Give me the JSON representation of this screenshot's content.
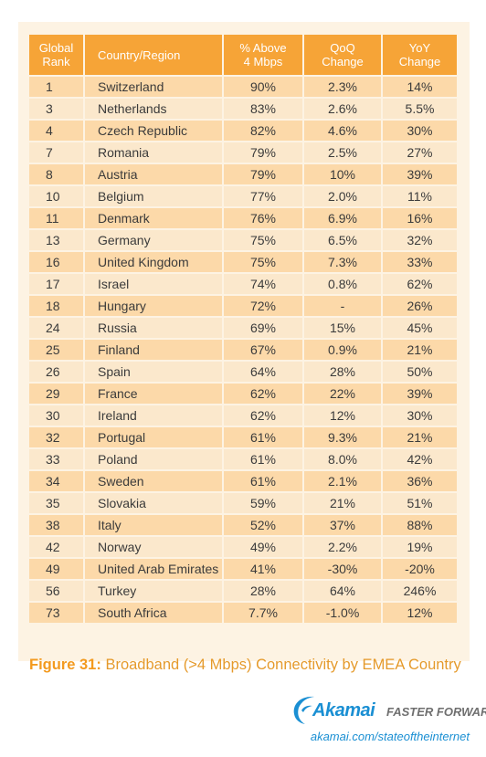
{
  "table": {
    "headers": [
      [
        "Global",
        "Rank"
      ],
      [
        "Country/Region"
      ],
      [
        "% Above",
        "4 Mbps"
      ],
      [
        "QoQ",
        "Change"
      ],
      [
        "YoY",
        "Change"
      ]
    ],
    "rows": [
      [
        "1",
        "Switzerland",
        "90%",
        "2.3%",
        "14%"
      ],
      [
        "3",
        "Netherlands",
        "83%",
        "2.6%",
        "5.5%"
      ],
      [
        "4",
        "Czech Republic",
        "82%",
        "4.6%",
        "30%"
      ],
      [
        "7",
        "Romania",
        "79%",
        "2.5%",
        "27%"
      ],
      [
        "8",
        "Austria",
        "79%",
        "10%",
        "39%"
      ],
      [
        "10",
        "Belgium",
        "77%",
        "2.0%",
        "11%"
      ],
      [
        "11",
        "Denmark",
        "76%",
        "6.9%",
        "16%"
      ],
      [
        "13",
        "Germany",
        "75%",
        "6.5%",
        "32%"
      ],
      [
        "16",
        "United Kingdom",
        "75%",
        "7.3%",
        "33%"
      ],
      [
        "17",
        "Israel",
        "74%",
        "0.8%",
        "62%"
      ],
      [
        "18",
        "Hungary",
        "72%",
        "-",
        "26%"
      ],
      [
        "24",
        "Russia",
        "69%",
        "15%",
        "45%"
      ],
      [
        "25",
        "Finland",
        "67%",
        "0.9%",
        "21%"
      ],
      [
        "26",
        "Spain",
        "64%",
        "28%",
        "50%"
      ],
      [
        "29",
        "France",
        "62%",
        "22%",
        "39%"
      ],
      [
        "30",
        "Ireland",
        "62%",
        "12%",
        "30%"
      ],
      [
        "32",
        "Portugal",
        "61%",
        "9.3%",
        "21%"
      ],
      [
        "33",
        "Poland",
        "61%",
        "8.0%",
        "42%"
      ],
      [
        "34",
        "Sweden",
        "61%",
        "2.1%",
        "36%"
      ],
      [
        "35",
        "Slovakia",
        "59%",
        "21%",
        "51%"
      ],
      [
        "38",
        "Italy",
        "52%",
        "37%",
        "88%"
      ],
      [
        "42",
        "Norway",
        "49%",
        "2.2%",
        "19%"
      ],
      [
        "49",
        "United Arab Emirates",
        "41%",
        "-30%",
        "-20%"
      ],
      [
        "56",
        "Turkey",
        "28%",
        "64%",
        "246%"
      ],
      [
        "73",
        "South Africa",
        "7.7%",
        "-1.0%",
        "12%"
      ]
    ]
  },
  "caption": {
    "figure_label": "Figure 31:",
    "text": "Broadband (>4 Mbps) Connectivity by EMEA Country"
  },
  "logo": {
    "brand": "Akamai",
    "tagline": "FASTER FORWARD",
    "icon": "akamai-swoosh-icon"
  },
  "footer": {
    "url": "akamai.com/stateoftheinternet"
  },
  "colors": {
    "header": "#f6a437",
    "row_odd": "#fcd9a9",
    "row_even": "#fbe8cc",
    "panel": "#fdf3e3",
    "caption": "#e59a2b",
    "brand_blue": "#1a8fd3"
  }
}
